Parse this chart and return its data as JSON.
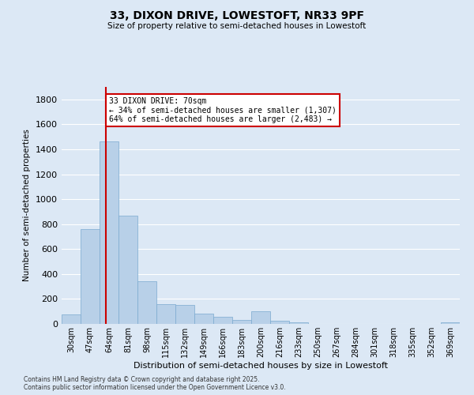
{
  "title_line1": "33, DIXON DRIVE, LOWESTOFT, NR33 9PF",
  "title_line2": "Size of property relative to semi-detached houses in Lowestoft",
  "xlabel": "Distribution of semi-detached houses by size in Lowestoft",
  "ylabel": "Number of semi-detached properties",
  "categories": [
    "30sqm",
    "47sqm",
    "64sqm",
    "81sqm",
    "98sqm",
    "115sqm",
    "132sqm",
    "149sqm",
    "166sqm",
    "183sqm",
    "200sqm",
    "216sqm",
    "233sqm",
    "250sqm",
    "267sqm",
    "284sqm",
    "301sqm",
    "318sqm",
    "335sqm",
    "352sqm",
    "369sqm"
  ],
  "values": [
    75,
    760,
    1460,
    870,
    340,
    160,
    155,
    80,
    55,
    30,
    100,
    25,
    15,
    0,
    0,
    0,
    0,
    0,
    0,
    0,
    15
  ],
  "bar_color": "#b8d0e8",
  "bar_edge_color": "#7aaacf",
  "bg_color": "#dce8f5",
  "grid_color": "#ffffff",
  "annotation_text_line1": "33 DIXON DRIVE: 70sqm",
  "annotation_text_line2": "← 34% of semi-detached houses are smaller (1,307)",
  "annotation_text_line3": "64% of semi-detached houses are larger (2,483) →",
  "annotation_box_color": "#ffffff",
  "annotation_box_edge": "#cc0000",
  "vline_color": "#cc0000",
  "ylim": [
    0,
    1900
  ],
  "yticks": [
    0,
    200,
    400,
    600,
    800,
    1000,
    1200,
    1400,
    1600,
    1800
  ],
  "footnote_line1": "Contains HM Land Registry data © Crown copyright and database right 2025.",
  "footnote_line2": "Contains public sector information licensed under the Open Government Licence v3.0."
}
